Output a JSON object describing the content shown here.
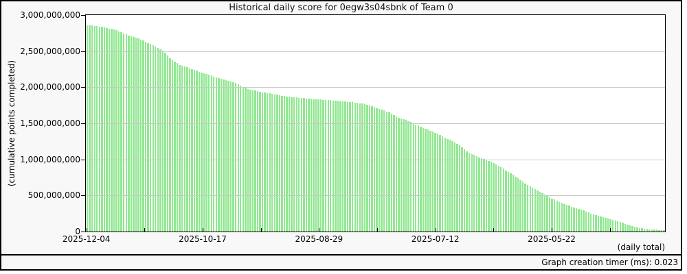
{
  "title": "Historical daily score for 0egw3s04sbnk of Team 0",
  "y_axis": {
    "label": "(cumulative points completed)",
    "tick_labels": [
      "3,000,000,000",
      "2,500,000,000",
      "2,000,000,000",
      "1,500,000,000",
      "1,000,000,000",
      "500,000,000",
      "0"
    ],
    "tick_values": [
      3000000000,
      2500000000,
      2000000000,
      1500000000,
      1000000000,
      500000000,
      0
    ]
  },
  "x_axis": {
    "tick_labels": [
      "2025-12-04",
      "2025-10-17",
      "2025-08-29",
      "2025-07-12",
      "2025-05-22"
    ],
    "note": "(daily total)"
  },
  "footer": {
    "timer_label": "Graph creation timer (ms): 0.023"
  },
  "colors": {
    "bar": "#90e890",
    "grid": "#c8c8c8",
    "axis": "#000000",
    "page_bg": "#f8f8f8",
    "plot_bg": "#ffffff"
  },
  "chart_data": {
    "type": "bar",
    "title": "Historical daily score for 0egw3s04sbnk of Team 0",
    "ylabel": "(cumulative points completed)",
    "xlabel": "(daily total)",
    "ylim": [
      0,
      3000000000
    ],
    "grid": "horizontal gridlines every 500,000,000",
    "legend": "none",
    "x_tick_labels": [
      "2025-12-04",
      "2025-10-17",
      "2025-08-29",
      "2025-07-12",
      "2025-05-22"
    ],
    "x_direction": "reversed time axis: most recent day (2025-12-04) at left, older days to the right",
    "bar_meaning": "one thin bar per day showing cumulative points completed",
    "values_scale": 1000000,
    "values_millions": [
      2860,
      2857,
      2853,
      2850,
      2847,
      2843,
      2840,
      2832,
      2823,
      2815,
      2807,
      2798,
      2790,
      2776,
      2762,
      2748,
      2734,
      2720,
      2708,
      2697,
      2685,
      2673,
      2662,
      2650,
      2633,
      2615,
      2598,
      2580,
      2563,
      2545,
      2527,
      2509,
      2480,
      2440,
      2400,
      2378,
      2355,
      2333,
      2310,
      2298,
      2287,
      2275,
      2263,
      2252,
      2240,
      2228,
      2216,
      2204,
      2192,
      2180,
      2170,
      2160,
      2150,
      2140,
      2130,
      2120,
      2110,
      2100,
      2090,
      2080,
      2070,
      2060,
      2040,
      2020,
      2005,
      1990,
      1975,
      1968,
      1960,
      1953,
      1945,
      1938,
      1930,
      1925,
      1919,
      1914,
      1908,
      1903,
      1897,
      1890,
      1883,
      1877,
      1870,
      1867,
      1863,
      1860,
      1857,
      1853,
      1850,
      1847,
      1843,
      1840,
      1838,
      1836,
      1833,
      1831,
      1829,
      1827,
      1824,
      1822,
      1820,
      1817,
      1813,
      1810,
      1807,
      1803,
      1800,
      1797,
      1793,
      1790,
      1786,
      1782,
      1778,
      1774,
      1770,
      1758,
      1746,
      1734,
      1722,
      1710,
      1699,
      1688,
      1677,
      1666,
      1651,
      1633,
      1615,
      1598,
      1580,
      1568,
      1556,
      1544,
      1532,
      1520,
      1502,
      1484,
      1467,
      1449,
      1434,
      1422,
      1410,
      1398,
      1386,
      1371,
      1353,
      1336,
      1318,
      1300,
      1284,
      1268,
      1252,
      1236,
      1220,
      1193,
      1167,
      1140,
      1113,
      1092,
      1077,
      1061,
      1046,
      1030,
      1017,
      1004,
      991,
      978,
      965,
      946,
      927,
      908,
      889,
      870,
      849,
      828,
      807,
      785,
      763,
      738,
      714,
      689,
      665,
      646,
      627,
      608,
      589,
      570,
      551,
      532,
      513,
      494,
      477,
      460,
      443,
      427,
      410,
      397,
      384,
      371,
      358,
      345,
      335,
      325,
      315,
      305,
      293,
      279,
      264,
      250,
      235,
      226,
      216,
      207,
      197,
      188,
      178,
      169,
      159,
      150,
      140,
      129,
      119,
      108,
      97,
      87,
      78,
      69,
      59,
      50,
      46,
      42,
      37,
      33,
      29,
      27,
      24,
      22,
      20,
      18
    ]
  }
}
